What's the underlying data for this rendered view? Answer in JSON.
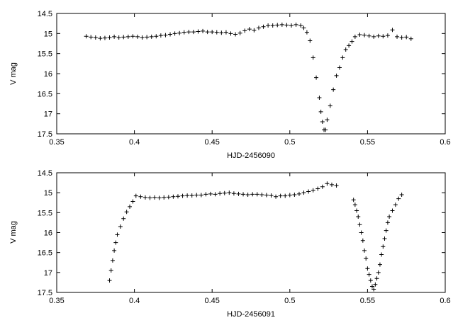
{
  "chart_data": [
    {
      "type": "scatter",
      "marker": "plus",
      "title": "",
      "xlabel": "HJD-2456090",
      "ylabel": "V mag",
      "xlim": [
        0.35,
        0.6
      ],
      "ylim": [
        17.5,
        14.5
      ],
      "y_inverted": true,
      "grid": false,
      "xticks": [
        "0.35",
        "0.4",
        "0.45",
        "0.5",
        "0.55",
        "0.6"
      ],
      "yticks": [
        "14.5",
        "15",
        "15.5",
        "16",
        "16.5",
        "17",
        "17.5"
      ],
      "series": [
        {
          "points": [
            [
              0.369,
              15.07
            ],
            [
              0.372,
              15.09
            ],
            [
              0.375,
              15.1
            ],
            [
              0.378,
              15.12
            ],
            [
              0.381,
              15.11
            ],
            [
              0.384,
              15.1
            ],
            [
              0.387,
              15.08
            ],
            [
              0.39,
              15.1
            ],
            [
              0.393,
              15.09
            ],
            [
              0.396,
              15.08
            ],
            [
              0.399,
              15.07
            ],
            [
              0.402,
              15.08
            ],
            [
              0.405,
              15.1
            ],
            [
              0.408,
              15.09
            ],
            [
              0.411,
              15.08
            ],
            [
              0.414,
              15.07
            ],
            [
              0.417,
              15.05
            ],
            [
              0.42,
              15.04
            ],
            [
              0.423,
              15.02
            ],
            [
              0.426,
              15.0
            ],
            [
              0.429,
              14.99
            ],
            [
              0.432,
              14.97
            ],
            [
              0.435,
              14.96
            ],
            [
              0.438,
              14.96
            ],
            [
              0.441,
              14.95
            ],
            [
              0.444,
              14.94
            ],
            [
              0.447,
              14.96
            ],
            [
              0.45,
              14.96
            ],
            [
              0.453,
              14.97
            ],
            [
              0.456,
              14.98
            ],
            [
              0.459,
              14.97
            ],
            [
              0.462,
              15.0
            ],
            [
              0.465,
              15.02
            ],
            [
              0.468,
              14.99
            ],
            [
              0.471,
              14.93
            ],
            [
              0.474,
              14.89
            ],
            [
              0.477,
              14.92
            ],
            [
              0.48,
              14.86
            ],
            [
              0.483,
              14.83
            ],
            [
              0.486,
              14.8
            ],
            [
              0.489,
              14.8
            ],
            [
              0.492,
              14.79
            ],
            [
              0.495,
              14.78
            ],
            [
              0.498,
              14.79
            ],
            [
              0.501,
              14.8
            ],
            [
              0.504,
              14.78
            ],
            [
              0.507,
              14.8
            ],
            [
              0.509,
              14.86
            ],
            [
              0.511,
              14.97
            ],
            [
              0.513,
              15.18
            ],
            [
              0.515,
              15.6
            ],
            [
              0.517,
              16.1
            ],
            [
              0.519,
              16.6
            ],
            [
              0.52,
              16.95
            ],
            [
              0.521,
              17.2
            ],
            [
              0.522,
              17.4
            ],
            [
              0.523,
              17.4
            ],
            [
              0.524,
              17.15
            ],
            [
              0.526,
              16.8
            ],
            [
              0.528,
              16.4
            ],
            [
              0.53,
              16.05
            ],
            [
              0.532,
              15.85
            ],
            [
              0.534,
              15.6
            ],
            [
              0.536,
              15.4
            ],
            [
              0.538,
              15.3
            ],
            [
              0.54,
              15.2
            ],
            [
              0.542,
              15.08
            ],
            [
              0.545,
              15.03
            ],
            [
              0.548,
              15.04
            ],
            [
              0.551,
              15.06
            ],
            [
              0.554,
              15.08
            ],
            [
              0.557,
              15.06
            ],
            [
              0.56,
              15.07
            ],
            [
              0.563,
              15.05
            ],
            [
              0.566,
              14.91
            ],
            [
              0.569,
              15.08
            ],
            [
              0.572,
              15.1
            ],
            [
              0.575,
              15.09
            ],
            [
              0.578,
              15.13
            ]
          ]
        }
      ]
    },
    {
      "type": "scatter",
      "marker": "plus",
      "title": "",
      "xlabel": "HJD-2456091",
      "ylabel": "V mag",
      "xlim": [
        0.35,
        0.6
      ],
      "ylim": [
        17.5,
        14.5
      ],
      "y_inverted": true,
      "grid": false,
      "xticks": [
        "0.35",
        "0.4",
        "0.45",
        "0.5",
        "0.55",
        "0.6"
      ],
      "yticks": [
        "14.5",
        "15",
        "15.5",
        "16",
        "16.5",
        "17",
        "17.5"
      ],
      "series": [
        {
          "points": [
            [
              0.384,
              17.2
            ],
            [
              0.385,
              16.95
            ],
            [
              0.386,
              16.7
            ],
            [
              0.387,
              16.45
            ],
            [
              0.388,
              16.25
            ],
            [
              0.389,
              16.05
            ],
            [
              0.391,
              15.85
            ],
            [
              0.393,
              15.65
            ],
            [
              0.395,
              15.48
            ],
            [
              0.397,
              15.35
            ],
            [
              0.399,
              15.22
            ],
            [
              0.401,
              15.08
            ],
            [
              0.404,
              15.1
            ],
            [
              0.407,
              15.12
            ],
            [
              0.41,
              15.13
            ],
            [
              0.413,
              15.12
            ],
            [
              0.416,
              15.13
            ],
            [
              0.419,
              15.12
            ],
            [
              0.422,
              15.11
            ],
            [
              0.425,
              15.1
            ],
            [
              0.428,
              15.09
            ],
            [
              0.431,
              15.08
            ],
            [
              0.434,
              15.07
            ],
            [
              0.437,
              15.07
            ],
            [
              0.44,
              15.06
            ],
            [
              0.443,
              15.06
            ],
            [
              0.446,
              15.04
            ],
            [
              0.449,
              15.03
            ],
            [
              0.452,
              15.04
            ],
            [
              0.455,
              15.02
            ],
            [
              0.458,
              15.01
            ],
            [
              0.461,
              15.0
            ],
            [
              0.464,
              15.02
            ],
            [
              0.467,
              15.03
            ],
            [
              0.47,
              15.04
            ],
            [
              0.473,
              15.05
            ],
            [
              0.476,
              15.04
            ],
            [
              0.479,
              15.04
            ],
            [
              0.482,
              15.05
            ],
            [
              0.485,
              15.06
            ],
            [
              0.488,
              15.07
            ],
            [
              0.491,
              15.1
            ],
            [
              0.494,
              15.08
            ],
            [
              0.497,
              15.08
            ],
            [
              0.5,
              15.06
            ],
            [
              0.503,
              15.05
            ],
            [
              0.506,
              15.03
            ],
            [
              0.509,
              15.0
            ],
            [
              0.512,
              14.97
            ],
            [
              0.515,
              14.94
            ],
            [
              0.518,
              14.9
            ],
            [
              0.521,
              14.85
            ],
            [
              0.524,
              14.77
            ],
            [
              0.527,
              14.8
            ],
            [
              0.53,
              14.82
            ],
            [
              0.541,
              15.18
            ],
            [
              0.542,
              15.3
            ],
            [
              0.543,
              15.45
            ],
            [
              0.544,
              15.6
            ],
            [
              0.545,
              15.8
            ],
            [
              0.546,
              16.0
            ],
            [
              0.547,
              16.2
            ],
            [
              0.548,
              16.45
            ],
            [
              0.549,
              16.65
            ],
            [
              0.55,
              16.9
            ],
            [
              0.551,
              17.05
            ],
            [
              0.552,
              17.2
            ],
            [
              0.553,
              17.35
            ],
            [
              0.554,
              17.42
            ],
            [
              0.555,
              17.3
            ],
            [
              0.556,
              17.15
            ],
            [
              0.557,
              17.0
            ],
            [
              0.558,
              16.8
            ],
            [
              0.559,
              16.55
            ],
            [
              0.56,
              16.35
            ],
            [
              0.561,
              16.15
            ],
            [
              0.562,
              15.95
            ],
            [
              0.563,
              15.75
            ],
            [
              0.564,
              15.6
            ],
            [
              0.566,
              15.45
            ],
            [
              0.568,
              15.3
            ],
            [
              0.57,
              15.15
            ],
            [
              0.572,
              15.05
            ]
          ]
        }
      ]
    }
  ]
}
